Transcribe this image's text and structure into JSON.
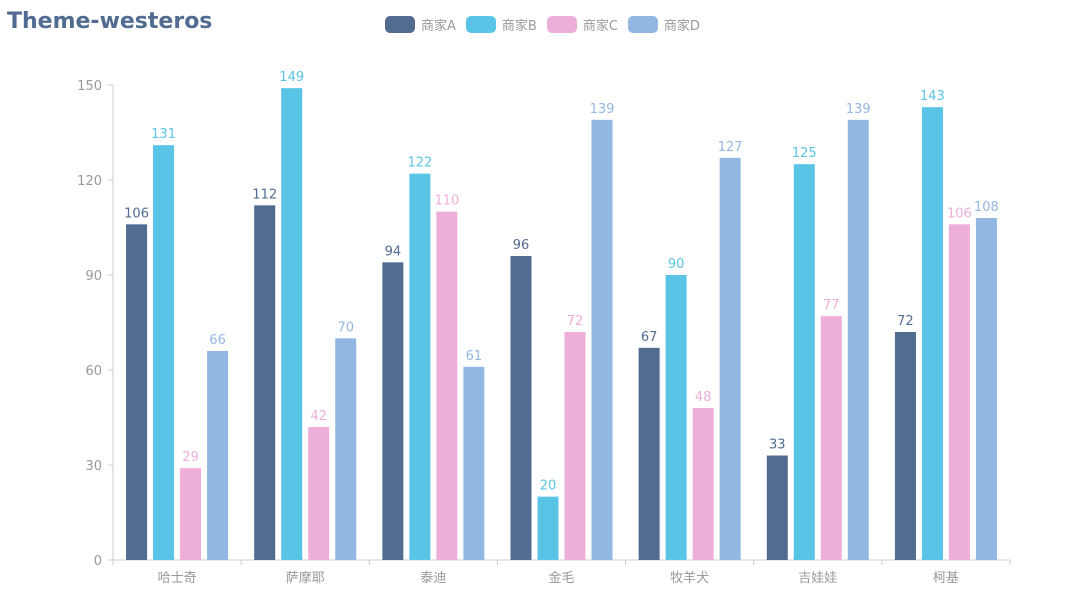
{
  "chart_data": {
    "type": "bar",
    "title": "Theme-westeros",
    "categories": [
      "哈士奇",
      "萨摩耶",
      "泰迪",
      "金毛",
      "牧羊犬",
      "吉娃娃",
      "柯基"
    ],
    "series": [
      {
        "name": "商家A",
        "color": "#516b91",
        "values": [
          106,
          112,
          94,
          96,
          67,
          33,
          72
        ]
      },
      {
        "name": "商家B",
        "color": "#59c4e6",
        "values": [
          131,
          149,
          122,
          20,
          90,
          125,
          143
        ]
      },
      {
        "name": "商家C",
        "color": "#edafda",
        "values": [
          29,
          42,
          110,
          72,
          48,
          77,
          106
        ]
      },
      {
        "name": "商家D",
        "color": "#93b7e3",
        "values": [
          66,
          70,
          61,
          139,
          127,
          139,
          108
        ]
      }
    ],
    "ylim": [
      0,
      150
    ],
    "yticks": [
      0,
      30,
      60,
      90,
      120,
      150
    ],
    "xlabel": "",
    "ylabel": "",
    "legend_position": "top-center"
  }
}
